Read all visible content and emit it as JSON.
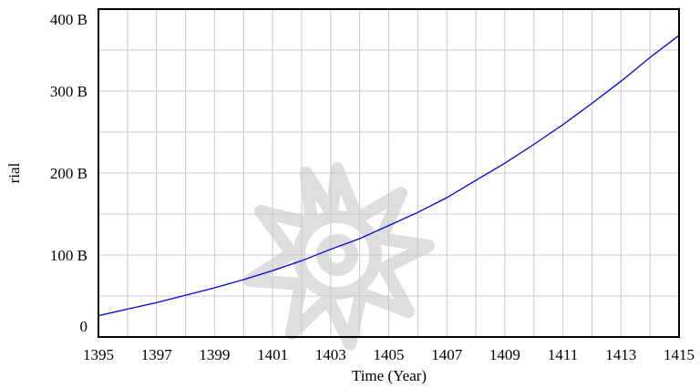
{
  "chart_data": {
    "type": "line",
    "title": "",
    "xlabel": "Time (Year)",
    "ylabel": "rial",
    "xlim": [
      1395,
      1415
    ],
    "ylim": [
      0,
      400
    ],
    "x_ticks": [
      1395,
      1397,
      1399,
      1401,
      1403,
      1405,
      1407,
      1409,
      1411,
      1413,
      1415
    ],
    "x_tick_labels": [
      "1395",
      "1397",
      "1399",
      "1401",
      "1403",
      "1405",
      "1407",
      "1409",
      "1411",
      "1413",
      "1415"
    ],
    "y_ticks": [
      0,
      100,
      200,
      300,
      400
    ],
    "y_tick_labels": [
      "0",
      "100 B",
      "200 B",
      "300 B",
      "400 B"
    ],
    "grid": true,
    "series": [
      {
        "color": "#0000dd",
        "x": [
          1395,
          1396,
          1397,
          1398,
          1399,
          1400,
          1401,
          1402,
          1403,
          1404,
          1405,
          1406,
          1407,
          1408,
          1409,
          1410,
          1411,
          1412,
          1413,
          1414,
          1415
        ],
        "y": [
          26,
          34,
          42,
          51,
          60,
          70,
          81,
          93,
          107,
          120,
          136,
          152,
          170,
          191,
          212,
          235,
          259,
          285,
          312,
          341,
          368
        ]
      }
    ]
  }
}
